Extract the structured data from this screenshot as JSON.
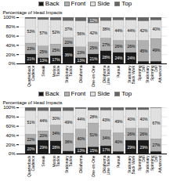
{
  "chart_data": [
    {
      "type": "bar",
      "stacked": true,
      "categories": [
        "Quarterback\nCadence",
        "Sneak",
        "Motion\nTackle",
        "Stationary\nTackle",
        "Oklahoma",
        "One-on-One",
        "Oklahoma\nLine Tackle",
        "Pursuit",
        "Stationary\nBack Work",
        "Spinning\nDrill\nStationary",
        "Spinning\nDrill\nAdvanced"
      ],
      "series": [
        {
          "name": "Back",
          "color": "#1a1a1a",
          "values": [
            21,
            13,
            17,
            36,
            13,
            21,
            28,
            24,
            24,
            5,
            5
          ],
          "value_labels": [
            "21%",
            "13%",
            "17%",
            "36%",
            "13%",
            "21%",
            "28%",
            "24%",
            "24%",
            null,
            null
          ]
        },
        {
          "name": "Front",
          "color": "#b0b0b0",
          "values": [
            23,
            25,
            25,
            20,
            23,
            25,
            27,
            26,
            26,
            45,
            49
          ],
          "value_labels": [
            "23%",
            "25%",
            "25%",
            "20%",
            "23%",
            "25%",
            "27%",
            "26%",
            "26%",
            "45%",
            "49%"
          ]
        },
        {
          "name": "Side",
          "color": "#e0e0e0",
          "values": [
            53,
            57,
            52,
            37,
            56,
            42,
            38,
            44,
            44,
            42,
            40
          ],
          "value_labels": [
            "53%",
            "57%",
            "52%",
            "37%",
            "56%",
            "42%",
            "38%",
            "44%",
            "44%",
            "42%",
            "40%"
          ]
        },
        {
          "name": "Top",
          "color": "#666666",
          "values": [
            3,
            5,
            6,
            7,
            8,
            12,
            7,
            6,
            6,
            8,
            6
          ],
          "value_labels": [
            null,
            null,
            null,
            null,
            null,
            "12%",
            null,
            null,
            null,
            null,
            null
          ]
        }
      ],
      "ylabel": "Percentage of Head Impacts",
      "ylim": [
        0,
        100
      ],
      "yticks": [
        {
          "value": 0,
          "label": "0%"
        },
        {
          "value": 20,
          "label": "20%"
        },
        {
          "value": 40,
          "label": "40%"
        },
        {
          "value": 60,
          "label": "60%"
        },
        {
          "value": 80,
          "label": "80%"
        },
        {
          "value": 100,
          "label": "100%"
        }
      ],
      "grid": true,
      "legend": "top",
      "data_labels": true
    },
    {
      "type": "bar",
      "stacked": true,
      "categories": [
        "Quarterback\nCadence",
        "Sneak",
        "Motion\nTackle",
        "Stationary\nTackle",
        "Oklahoma",
        "One-on-One",
        "Oklahoma\nLine Tackle",
        "Pursuit",
        "Stationary\nBack Work",
        "Spinning\nDrill\nStationary",
        "Spinning\nDrill\nAdvanced"
      ],
      "series": [
        {
          "name": "Back",
          "color": "#1a1a1a",
          "values": [
            20,
            29,
            28,
            6,
            13,
            15,
            17,
            5,
            29,
            29,
            5
          ],
          "value_labels": [
            "20%",
            "29%",
            "28%",
            null,
            "13%",
            "15%",
            "17%",
            null,
            "29%",
            "29%",
            null
          ]
        },
        {
          "name": "Front",
          "color": "#b0b0b0",
          "values": [
            22,
            20,
            34,
            38,
            40,
            51,
            34,
            40,
            26,
            26,
            27
          ],
          "value_labels": [
            "22%",
            "20%",
            "34%",
            "38%",
            "40%",
            "51%",
            "34%",
            "40%",
            "26%",
            "26%",
            "27%"
          ]
        },
        {
          "name": "Side",
          "color": "#e0e0e0",
          "values": [
            51,
            44,
            30,
            49,
            44,
            28,
            43,
            49,
            40,
            40,
            67
          ],
          "value_labels": [
            "51%",
            "44%",
            "30%",
            "49%",
            "44%",
            "28%",
            "43%",
            "49%",
            "40%",
            "40%",
            "67%"
          ]
        },
        {
          "name": "Top",
          "color": "#666666",
          "values": [
            7,
            7,
            8,
            7,
            3,
            6,
            6,
            6,
            5,
            5,
            1
          ],
          "value_labels": [
            null,
            null,
            null,
            null,
            null,
            null,
            null,
            null,
            null,
            null,
            null
          ]
        }
      ],
      "ylabel": "Percentage of Head Impacts",
      "ylim": [
        0,
        100
      ],
      "yticks": [
        {
          "value": 0,
          "label": "0%"
        },
        {
          "value": 20,
          "label": "20%"
        },
        {
          "value": 40,
          "label": "40%"
        },
        {
          "value": 60,
          "label": "60%"
        },
        {
          "value": 80,
          "label": "80%"
        },
        {
          "value": 100,
          "label": "100%"
        }
      ],
      "grid": true,
      "legend": "top",
      "data_labels": true
    }
  ]
}
